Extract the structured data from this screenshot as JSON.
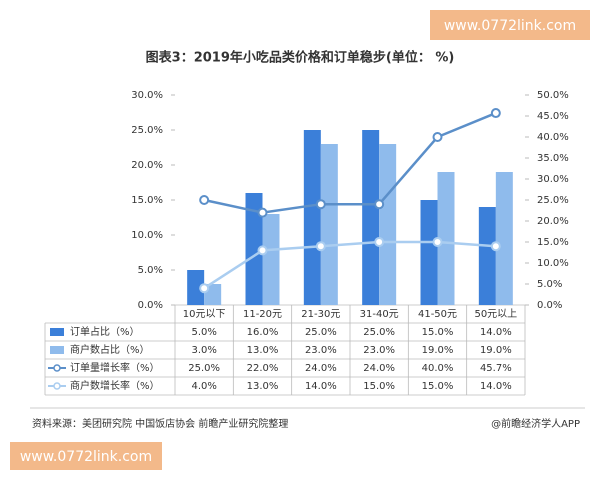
{
  "chart_data": {
    "type": "bar-line",
    "title": "图表3：2019年小吃品类价格和订单稳步(单位： %)",
    "categories": [
      "10元以下",
      "11-20元",
      "21-30元",
      "31-40元",
      "41-50元",
      "50元以上"
    ],
    "series": [
      {
        "name": "订单占比（%）",
        "type": "bar",
        "color": "#3b7fd9",
        "values": [
          5.0,
          16.0,
          25.0,
          25.0,
          15.0,
          14.0
        ],
        "value_labels": [
          "5.0%",
          "16.0%",
          "25.0%",
          "25.0%",
          "15.0%",
          "14.0%"
        ]
      },
      {
        "name": "商户数占比（%）",
        "type": "bar",
        "color": "#8fbbec",
        "values": [
          3.0,
          13.0,
          23.0,
          23.0,
          19.0,
          19.0
        ],
        "value_labels": [
          "3.0%",
          "13.0%",
          "23.0%",
          "23.0%",
          "19.0%",
          "19.0%"
        ]
      },
      {
        "name": "订单量增长率（%）",
        "type": "line",
        "axis": "y2",
        "color": "#5b8fc9",
        "values": [
          25.0,
          22.0,
          24.0,
          24.0,
          40.0,
          45.7
        ],
        "value_labels": [
          "25.0%",
          "22.0%",
          "24.0%",
          "24.0%",
          "40.0%",
          "45.7%"
        ]
      },
      {
        "name": "商户数增长率（%）",
        "type": "line",
        "axis": "y2",
        "color": "#aacdf0",
        "values": [
          4.0,
          13.0,
          14.0,
          15.0,
          15.0,
          14.0
        ],
        "value_labels": [
          "4.0%",
          "13.0%",
          "14.0%",
          "15.0%",
          "15.0%",
          "14.0%"
        ]
      }
    ],
    "ylim": [
      0,
      30
    ],
    "yticks": [
      {
        "value": 0,
        "label": "0.0%"
      },
      {
        "value": 5,
        "label": "5.0%"
      },
      {
        "value": 10,
        "label": "10.0%"
      },
      {
        "value": 15,
        "label": "15.0%"
      },
      {
        "value": 20,
        "label": "20.0%"
      },
      {
        "value": 25,
        "label": "25.0%"
      },
      {
        "value": 30,
        "label": "30.0%"
      }
    ],
    "y2lim": [
      0,
      50
    ],
    "y2ticks": [
      {
        "value": 0,
        "label": "0.0%"
      },
      {
        "value": 5,
        "label": "5.0%"
      },
      {
        "value": 10,
        "label": "10.0%"
      },
      {
        "value": 15,
        "label": "15.0%"
      },
      {
        "value": 20,
        "label": "20.0%"
      },
      {
        "value": 25,
        "label": "25.0%"
      },
      {
        "value": 30,
        "label": "30.0%"
      },
      {
        "value": 35,
        "label": "35.0%"
      },
      {
        "value": 40,
        "label": "40.0%"
      },
      {
        "value": 45,
        "label": "45.0%"
      },
      {
        "value": 50,
        "label": "50.0%"
      }
    ],
    "source": "资料来源：美团研究院 中国饭店协会 前瞻产业研究院整理",
    "credit": "@前瞻经济学人APP",
    "watermarks": [
      "www.0772link.com",
      "www.0772link.com"
    ]
  }
}
